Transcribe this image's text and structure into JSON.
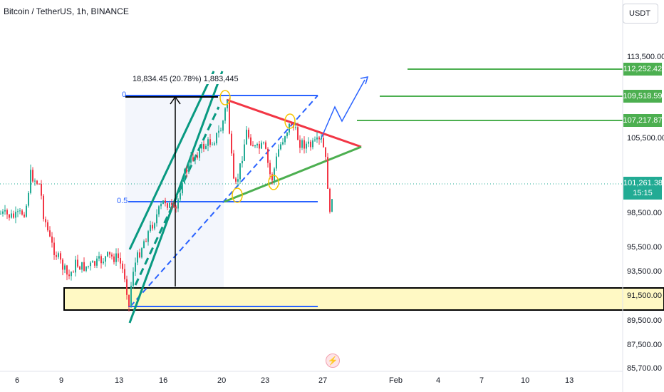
{
  "header": {
    "title": "Bitcoin / TetherUS, 1h, BINANCE",
    "currency_button": "USDT"
  },
  "measure": {
    "label": "18,834.45 (20.78%) 1,883,445"
  },
  "fib": {
    "level_0": "0",
    "level_05": "0.5"
  },
  "price_axis": {
    "ticks": [
      "113,500.00",
      "105,500.00",
      "98,500.00",
      "95,500.00",
      "93,500.00",
      "91,500.00",
      "89,500.00",
      "87,500.00",
      "85,700.00"
    ],
    "targets": [
      {
        "label": "112,252.42",
        "color": "#22ab94"
      },
      {
        "label": "109,518.59",
        "color": "#22ab94"
      },
      {
        "label": "107,217.87",
        "color": "#22ab94"
      }
    ],
    "current_price": "101,261.38",
    "countdown": "15:15"
  },
  "time_axis": {
    "labels": [
      "6",
      "9",
      "13",
      "16",
      "20",
      "23",
      "27",
      "Feb",
      "4",
      "7",
      "10",
      "13"
    ]
  },
  "icons": {
    "flash": "flash-icon"
  },
  "colors": {
    "bull": "#22ab94",
    "bear": "#f23645",
    "fib": "#2962ff",
    "zone": "#fff9c4",
    "target_line": "#4caf50"
  }
}
